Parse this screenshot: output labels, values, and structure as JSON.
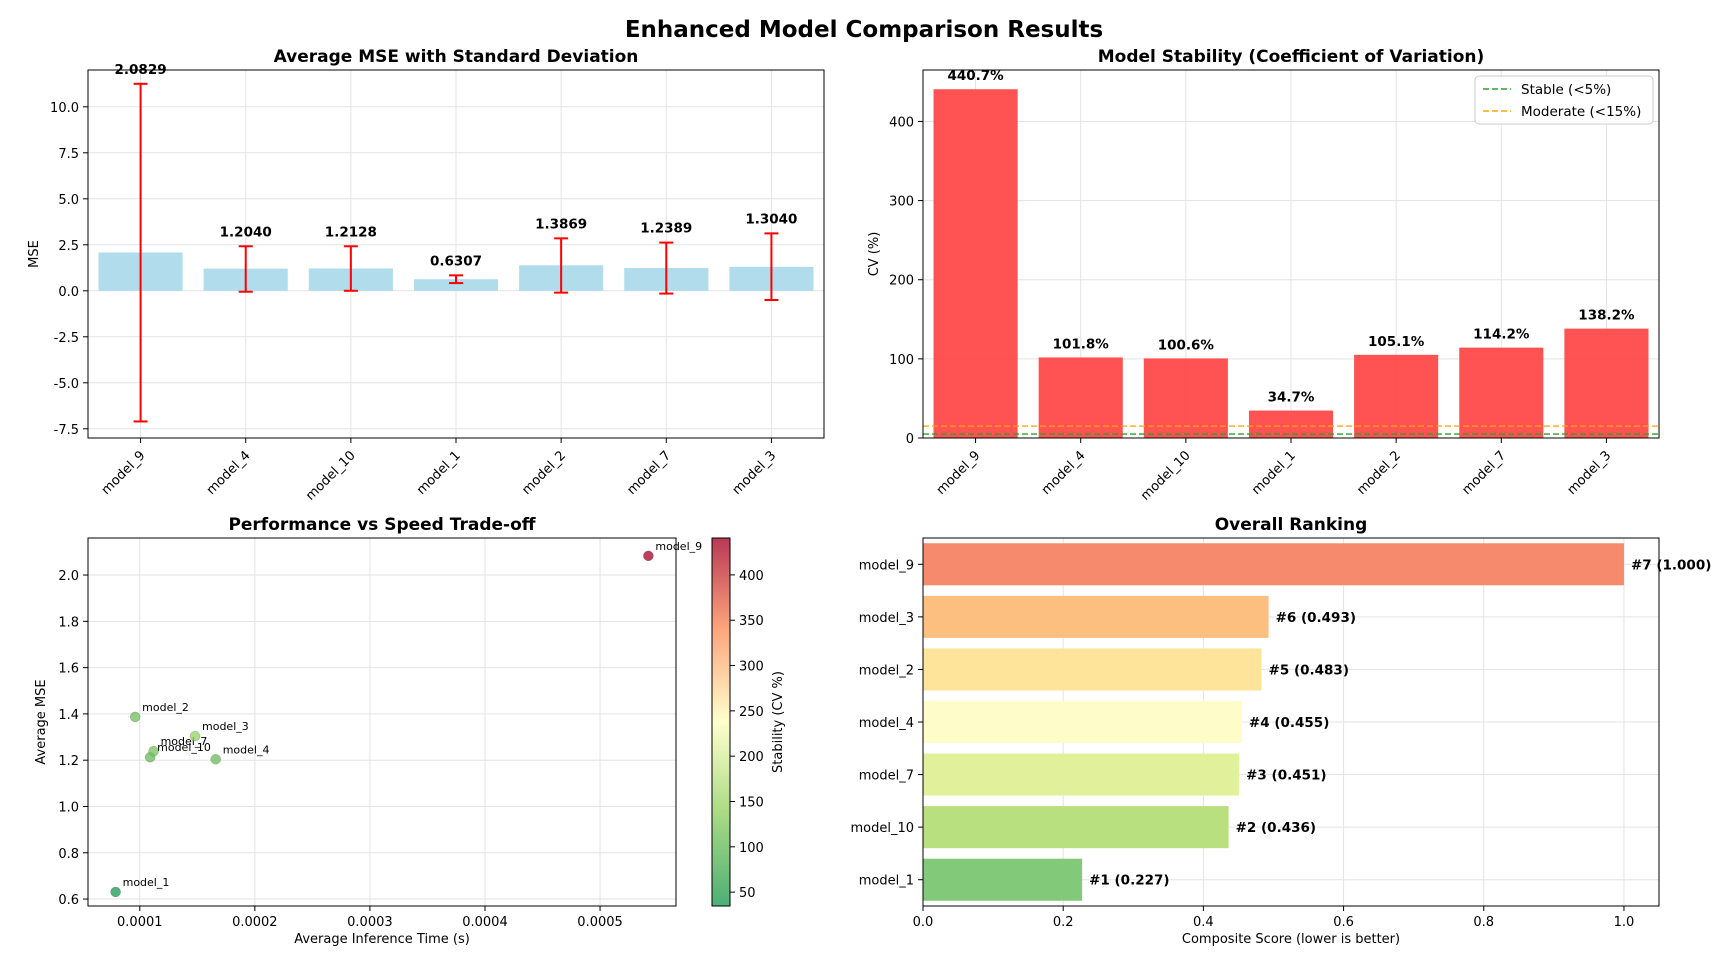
{
  "suptitle": "Enhanced Model Comparison Results",
  "chart_data": [
    {
      "type": "bar",
      "title": "Average MSE with Standard Deviation",
      "xlabel": "",
      "ylabel": "MSE",
      "categories": [
        "model_9",
        "model_4",
        "model_10",
        "model_1",
        "model_2",
        "model_7",
        "model_3"
      ],
      "values": [
        2.0829,
        1.204,
        1.2128,
        0.6307,
        1.3869,
        1.2389,
        1.304
      ],
      "value_labels": [
        "2.0829",
        "1.2040",
        "1.2128",
        "0.6307",
        "1.3869",
        "1.2389",
        "1.3040"
      ],
      "error_low": [
        -7.1,
        -0.05,
        0.0,
        0.42,
        -0.1,
        -0.15,
        -0.5
      ],
      "error_high": [
        11.25,
        2.42,
        2.42,
        0.84,
        2.85,
        2.62,
        3.12
      ],
      "ylim": [
        -8.0,
        12.0
      ],
      "yticks": [
        -7.5,
        -5.0,
        -2.5,
        0.0,
        2.5,
        5.0,
        7.5,
        10.0
      ],
      "ytick_labels": [
        "-7.5",
        "-5.0",
        "-2.5",
        "0.0",
        "2.5",
        "5.0",
        "7.5",
        "10.0"
      ],
      "grid": true,
      "bar_color": "#a8d8ea",
      "error_color": "#ff0000"
    },
    {
      "type": "bar",
      "title": "Model Stability (Coefficient of Variation)",
      "xlabel": "",
      "ylabel": "CV (%)",
      "categories": [
        "model_9",
        "model_4",
        "model_10",
        "model_1",
        "model_2",
        "model_7",
        "model_3"
      ],
      "values": [
        440.7,
        101.8,
        100.6,
        34.7,
        105.1,
        114.2,
        138.2
      ],
      "value_labels": [
        "440.7%",
        "101.8%",
        "100.6%",
        "34.7%",
        "105.1%",
        "114.2%",
        "138.2%"
      ],
      "ylim": [
        0,
        465
      ],
      "yticks": [
        0,
        100,
        200,
        300,
        400
      ],
      "ytick_labels": [
        "0",
        "100",
        "200",
        "300",
        "400"
      ],
      "reference_lines": [
        {
          "label": "Stable (<5%)",
          "value": 5,
          "color": "#2ca02c"
        },
        {
          "label": "Moderate (<15%)",
          "value": 15,
          "color": "#ffa500"
        }
      ],
      "legend": "top-right",
      "grid": true,
      "bar_color": "#ff4a4a"
    },
    {
      "type": "scatter",
      "title": "Performance vs Speed Trade-off",
      "xlabel": "Average Inference Time (s)",
      "ylabel": "Average MSE",
      "points": [
        {
          "label": "model_9",
          "x": 0.000542,
          "y": 2.0829,
          "cv": 440.7
        },
        {
          "label": "model_4",
          "x": 0.000166,
          "y": 1.204,
          "cv": 101.8
        },
        {
          "label": "model_10",
          "x": 0.000109,
          "y": 1.2128,
          "cv": 100.6
        },
        {
          "label": "model_1",
          "x": 7.9e-05,
          "y": 0.6307,
          "cv": 34.7
        },
        {
          "label": "model_2",
          "x": 9.6e-05,
          "y": 1.3869,
          "cv": 105.1
        },
        {
          "label": "model_7",
          "x": 0.000112,
          "y": 1.2389,
          "cv": 114.2
        },
        {
          "label": "model_3",
          "x": 0.000148,
          "y": 1.304,
          "cv": 138.2
        }
      ],
      "xlim": [
        5.5e-05,
        0.000566
      ],
      "ylim": [
        0.57,
        2.16
      ],
      "xticks": [
        0.0001,
        0.0002,
        0.0003,
        0.0004,
        0.0005
      ],
      "xtick_labels": [
        "0.0001",
        "0.0002",
        "0.0003",
        "0.0004",
        "0.0005"
      ],
      "yticks": [
        0.6,
        0.8,
        1.0,
        1.2,
        1.4,
        1.6,
        1.8,
        2.0
      ],
      "ytick_labels": [
        "0.6",
        "0.8",
        "1.0",
        "1.2",
        "1.4",
        "1.6",
        "1.8",
        "2.0"
      ],
      "colorbar": {
        "label": "Stability (CV %)",
        "range": [
          34.7,
          440.7
        ],
        "ticks": [
          50,
          100,
          150,
          200,
          250,
          300,
          350,
          400
        ],
        "tick_labels": [
          "50",
          "100",
          "150",
          "200",
          "250",
          "300",
          "350",
          "400"
        ],
        "colormap": "RdYlGn_r"
      },
      "grid": true
    },
    {
      "type": "bar",
      "orientation": "horizontal",
      "title": "Overall Ranking",
      "xlabel": "Composite Score (lower is better)",
      "ylabel": "",
      "categories": [
        "model_9",
        "model_3",
        "model_2",
        "model_4",
        "model_7",
        "model_10",
        "model_1"
      ],
      "values": [
        1.0,
        0.493,
        0.483,
        0.455,
        0.451,
        0.436,
        0.227
      ],
      "value_labels": [
        "#7 (1.000)",
        "#6 (0.493)",
        "#5 (0.483)",
        "#4 (0.455)",
        "#3 (0.451)",
        "#2 (0.436)",
        "#1 (0.227)"
      ],
      "colors": [
        "#f58b6c",
        "#fdbf7f",
        "#fee39b",
        "#fefcc8",
        "#e1f19b",
        "#b8e07e",
        "#82c97a"
      ],
      "xlim": [
        0,
        1.05
      ],
      "xticks": [
        0.0,
        0.2,
        0.4,
        0.6,
        0.8,
        1.0
      ],
      "xtick_labels": [
        "0.0",
        "0.2",
        "0.4",
        "0.6",
        "0.8",
        "1.0"
      ],
      "grid": true
    }
  ]
}
